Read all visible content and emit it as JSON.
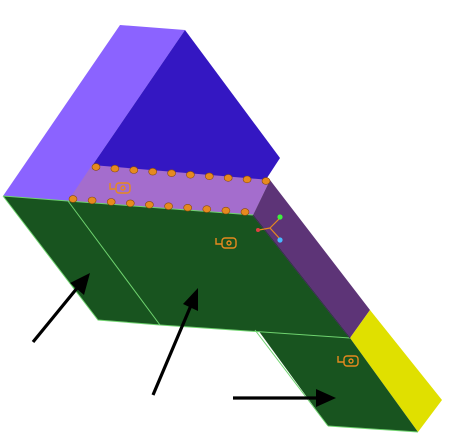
{
  "viewport": {
    "background": "#ffffff",
    "colors": {
      "purple_light": "#8b63ff",
      "purple_dark": "#3417c2",
      "lilac": "#a46dcd",
      "green": "#18541f",
      "green_edge": "#6fd36f",
      "plum": "#5d3477",
      "yellow": "#e0e000",
      "marker_orange": "#e68a1f",
      "arrow": "#000000"
    }
  },
  "icons": {
    "load_marker": "load-glyph-icon",
    "triad": "triad-axis-icon",
    "arrow": "force-arrow-icon",
    "bolt": "bolt-node-icon"
  }
}
